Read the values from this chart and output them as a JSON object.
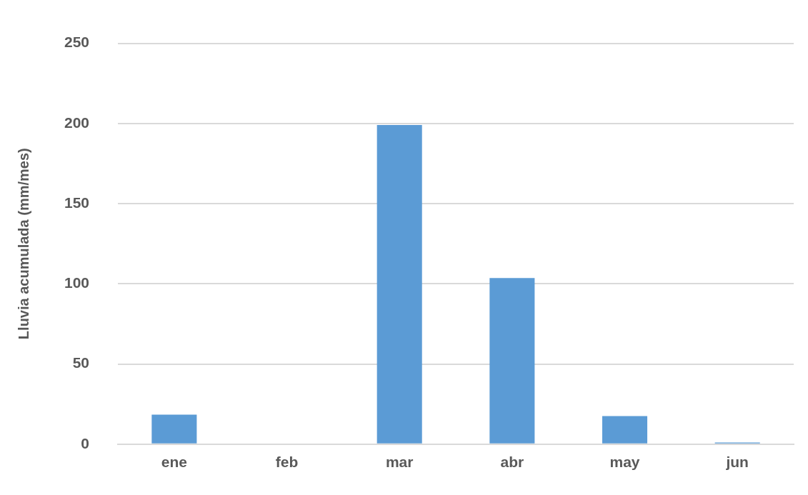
{
  "chart_data": {
    "type": "bar",
    "ylabel": "Lluvia acumulada (mm/mes)",
    "categories": [
      "ene",
      "feb",
      "mar",
      "abr",
      "may",
      "jun"
    ],
    "values": [
      18.4,
      0,
      199,
      103.6,
      17.5,
      1
    ],
    "color": "#5b9bd5",
    "ylim": [
      0,
      250
    ],
    "yticks": [
      0,
      50,
      100,
      150,
      200,
      250
    ],
    "grid": "y"
  }
}
